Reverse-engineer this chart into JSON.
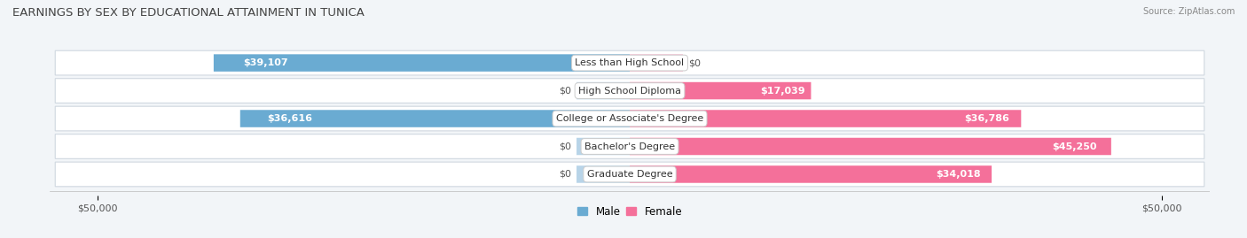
{
  "title": "EARNINGS BY SEX BY EDUCATIONAL ATTAINMENT IN TUNICA",
  "source": "Source: ZipAtlas.com",
  "categories": [
    "Less than High School",
    "High School Diploma",
    "College or Associate's Degree",
    "Bachelor's Degree",
    "Graduate Degree"
  ],
  "male_values": [
    39107,
    0,
    36616,
    0,
    0
  ],
  "female_values": [
    0,
    17039,
    36786,
    45250,
    34018
  ],
  "male_color": "#6aabd2",
  "male_color_light": "#b8d4e8",
  "female_color": "#f4709a",
  "female_color_light": "#f9b8cf",
  "max_value": 50000,
  "bg_color": "#f2f5f8",
  "row_bg": "#ffffff",
  "row_bg_alt": "#eef1f5",
  "title_fontsize": 9.5,
  "label_fontsize": 8,
  "tick_fontsize": 8,
  "legend_fontsize": 8.5
}
